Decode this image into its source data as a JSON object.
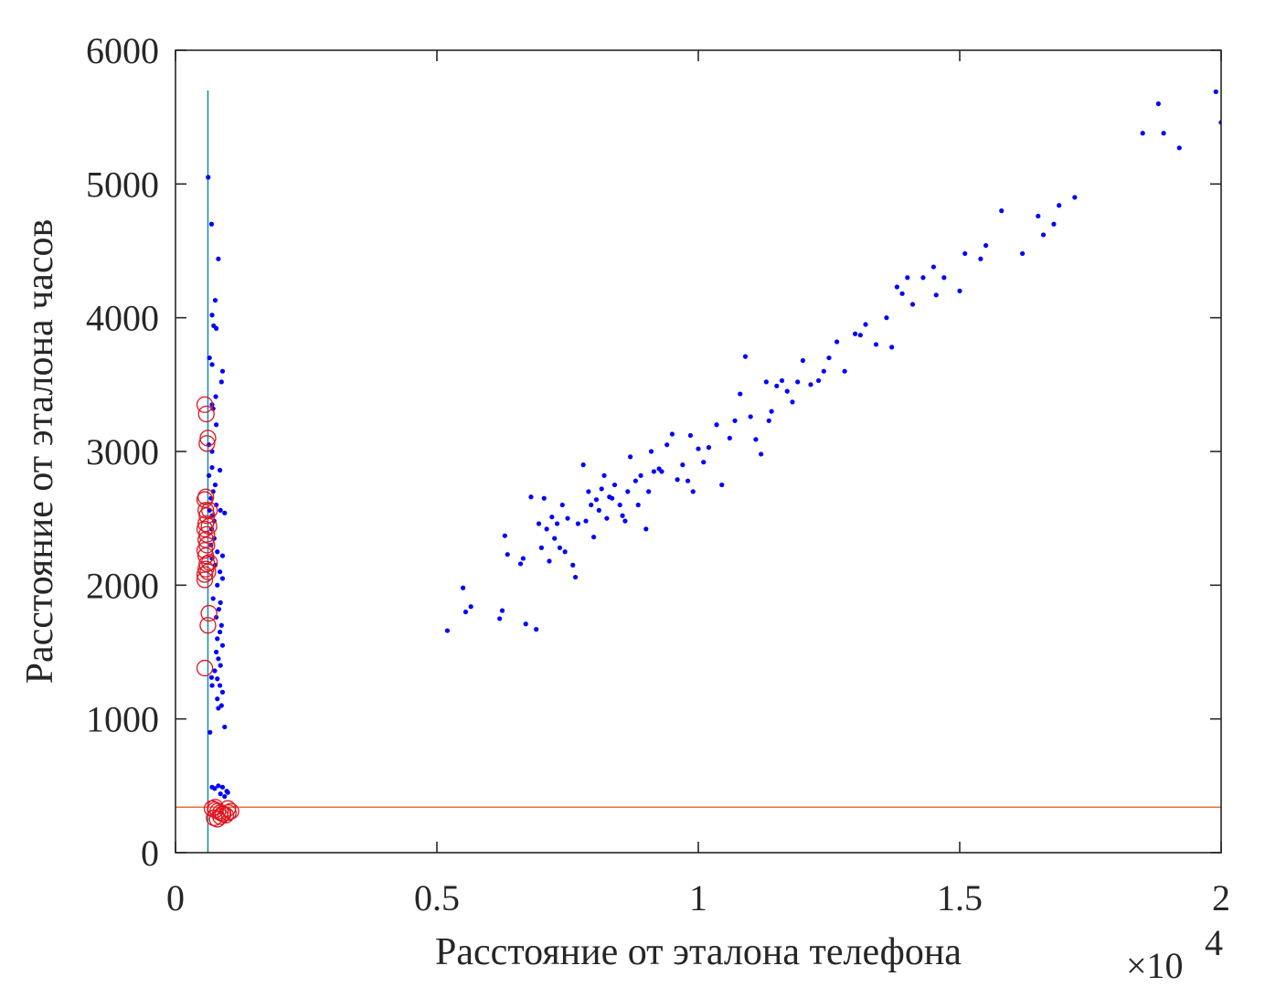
{
  "chart_data": {
    "type": "scatter",
    "title": "",
    "xlabel": "Расстояние от эталона телефона",
    "ylabel": "Расстояние от эталона часов",
    "x_exponent_label": {
      "times": "×10",
      "power": "4"
    },
    "xlim": [
      0,
      20000
    ],
    "ylim": [
      0,
      6000
    ],
    "x_ticks": [
      0,
      5000,
      10000,
      15000,
      20000
    ],
    "x_tick_labels": [
      "0",
      "0.5",
      "1",
      "1.5",
      "2"
    ],
    "y_ticks": [
      0,
      1000,
      2000,
      3000,
      4000,
      5000,
      6000
    ],
    "y_tick_labels": [
      "0",
      "1000",
      "2000",
      "3000",
      "4000",
      "5000",
      "6000"
    ],
    "grid": false,
    "colors": {
      "points": "#0000ff",
      "outliers": "#e0141e",
      "vline": "#1f8fa6",
      "hline": "#e8703a",
      "axes": "#262626"
    },
    "threshold_lines": {
      "vertical": {
        "x": 620,
        "y_from": 0,
        "y_to": 5700
      },
      "horizontal": {
        "y": 340,
        "x_from": 0,
        "x_to": 20000
      }
    },
    "series": [
      {
        "marker": "dot",
        "points": [
          [
            5200,
            1660
          ],
          [
            5500,
            1980
          ],
          [
            5550,
            1800
          ],
          [
            5650,
            1840
          ],
          [
            6200,
            1750
          ],
          [
            6250,
            1810
          ],
          [
            6300,
            2370
          ],
          [
            6350,
            2230
          ],
          [
            6600,
            2160
          ],
          [
            6650,
            2200
          ],
          [
            6700,
            1710
          ],
          [
            6800,
            2660
          ],
          [
            6900,
            1670
          ],
          [
            6950,
            2460
          ],
          [
            7000,
            2280
          ],
          [
            7050,
            2650
          ],
          [
            7100,
            2420
          ],
          [
            7150,
            2180
          ],
          [
            7200,
            2510
          ],
          [
            7250,
            2350
          ],
          [
            7300,
            2460
          ],
          [
            7350,
            2280
          ],
          [
            7400,
            2600
          ],
          [
            7450,
            2250
          ],
          [
            7500,
            2500
          ],
          [
            7600,
            2150
          ],
          [
            7650,
            2060
          ],
          [
            7700,
            2460
          ],
          [
            7800,
            2900
          ],
          [
            7850,
            2480
          ],
          [
            7900,
            2700
          ],
          [
            7950,
            2600
          ],
          [
            8000,
            2360
          ],
          [
            8050,
            2640
          ],
          [
            8100,
            2560
          ],
          [
            8150,
            2720
          ],
          [
            8200,
            2820
          ],
          [
            8250,
            2500
          ],
          [
            8300,
            2660
          ],
          [
            8350,
            2650
          ],
          [
            8400,
            2750
          ],
          [
            8500,
            2600
          ],
          [
            8550,
            2520
          ],
          [
            8600,
            2480
          ],
          [
            8650,
            2700
          ],
          [
            8700,
            2960
          ],
          [
            8800,
            2780
          ],
          [
            8850,
            2600
          ],
          [
            8900,
            2820
          ],
          [
            9000,
            2420
          ],
          [
            9050,
            2700
          ],
          [
            9100,
            3000
          ],
          [
            9150,
            2850
          ],
          [
            9250,
            2870
          ],
          [
            9300,
            2850
          ],
          [
            9400,
            3050
          ],
          [
            9500,
            3130
          ],
          [
            9600,
            2790
          ],
          [
            9700,
            2900
          ],
          [
            9800,
            2780
          ],
          [
            9850,
            3120
          ],
          [
            9900,
            2700
          ],
          [
            10000,
            3020
          ],
          [
            10100,
            2920
          ],
          [
            10200,
            3030
          ],
          [
            10350,
            3200
          ],
          [
            10450,
            2750
          ],
          [
            10600,
            3100
          ],
          [
            10700,
            3230
          ],
          [
            10800,
            3430
          ],
          [
            10900,
            3710
          ],
          [
            11000,
            3260
          ],
          [
            11100,
            3090
          ],
          [
            11200,
            2980
          ],
          [
            11300,
            3520
          ],
          [
            11350,
            3230
          ],
          [
            11400,
            3300
          ],
          [
            11500,
            3490
          ],
          [
            11600,
            3530
          ],
          [
            11700,
            3450
          ],
          [
            11800,
            3370
          ],
          [
            11900,
            3520
          ],
          [
            12000,
            3680
          ],
          [
            12150,
            3500
          ],
          [
            12300,
            3530
          ],
          [
            12400,
            3600
          ],
          [
            12500,
            3700
          ],
          [
            12650,
            3820
          ],
          [
            12800,
            3600
          ],
          [
            13000,
            3880
          ],
          [
            13100,
            3870
          ],
          [
            13200,
            3950
          ],
          [
            13400,
            3800
          ],
          [
            13600,
            4000
          ],
          [
            13700,
            3780
          ],
          [
            13800,
            4230
          ],
          [
            13900,
            4180
          ],
          [
            14000,
            4300
          ],
          [
            14100,
            4100
          ],
          [
            14300,
            4300
          ],
          [
            14500,
            4380
          ],
          [
            14550,
            4170
          ],
          [
            14700,
            4300
          ],
          [
            15000,
            4200
          ],
          [
            15100,
            4480
          ],
          [
            15400,
            4440
          ],
          [
            15500,
            4540
          ],
          [
            15800,
            4800
          ],
          [
            16200,
            4480
          ],
          [
            16500,
            4760
          ],
          [
            16600,
            4620
          ],
          [
            16800,
            4700
          ],
          [
            16900,
            4840
          ],
          [
            17200,
            4900
          ],
          [
            18500,
            5380
          ],
          [
            18800,
            5600
          ],
          [
            18900,
            5380
          ],
          [
            19200,
            5270
          ],
          [
            19900,
            5690
          ],
          [
            20000,
            5460
          ],
          [
            625,
            5050
          ],
          [
            690,
            4700
          ],
          [
            820,
            4440
          ],
          [
            760,
            4130
          ],
          [
            700,
            4020
          ],
          [
            730,
            3940
          ],
          [
            780,
            3920
          ],
          [
            650,
            3700
          ],
          [
            700,
            3650
          ],
          [
            900,
            3600
          ],
          [
            880,
            3520
          ],
          [
            770,
            3410
          ],
          [
            700,
            3350
          ],
          [
            720,
            3320
          ],
          [
            780,
            3200
          ],
          [
            640,
            3050
          ],
          [
            700,
            3000
          ],
          [
            850,
            2860
          ],
          [
            700,
            2880
          ],
          [
            640,
            2820
          ],
          [
            760,
            2750
          ],
          [
            720,
            2700
          ],
          [
            680,
            2650
          ],
          [
            780,
            2600
          ],
          [
            650,
            2560
          ],
          [
            700,
            2520
          ],
          [
            860,
            2560
          ],
          [
            940,
            2540
          ],
          [
            900,
            2220
          ],
          [
            740,
            2480
          ],
          [
            690,
            2420
          ],
          [
            740,
            2350
          ],
          [
            680,
            2300
          ],
          [
            800,
            2250
          ],
          [
            700,
            2200
          ],
          [
            760,
            2150
          ],
          [
            850,
            2100
          ],
          [
            900,
            2050
          ],
          [
            800,
            2000
          ],
          [
            720,
            1900
          ],
          [
            860,
            1870
          ],
          [
            830,
            1820
          ],
          [
            780,
            1760
          ],
          [
            880,
            1700
          ],
          [
            850,
            1650
          ],
          [
            800,
            1600
          ],
          [
            900,
            1550
          ],
          [
            780,
            1500
          ],
          [
            820,
            1450
          ],
          [
            860,
            1400
          ],
          [
            750,
            1360
          ],
          [
            800,
            1300
          ],
          [
            850,
            1250
          ],
          [
            900,
            1200
          ],
          [
            800,
            1150
          ],
          [
            880,
            1100
          ],
          [
            820,
            1080
          ],
          [
            940,
            940
          ],
          [
            690,
            1310
          ],
          [
            700,
            1250
          ],
          [
            660,
            900
          ],
          [
            700,
            490
          ],
          [
            820,
            500
          ],
          [
            900,
            490
          ],
          [
            750,
            480
          ],
          [
            980,
            460
          ],
          [
            1000,
            450
          ],
          [
            860,
            440
          ],
          [
            940,
            420
          ]
        ]
      },
      {
        "marker": "circle",
        "points": [
          [
            560,
            3350
          ],
          [
            590,
            3280
          ],
          [
            620,
            3100
          ],
          [
            600,
            3060
          ],
          [
            580,
            2660
          ],
          [
            560,
            2640
          ],
          [
            580,
            2560
          ],
          [
            600,
            2520
          ],
          [
            580,
            2460
          ],
          [
            560,
            2420
          ],
          [
            600,
            2380
          ],
          [
            580,
            2340
          ],
          [
            600,
            2300
          ],
          [
            560,
            2260
          ],
          [
            580,
            2220
          ],
          [
            600,
            2160
          ],
          [
            580,
            2120
          ],
          [
            560,
            2080
          ],
          [
            560,
            2040
          ],
          [
            650,
            2560
          ],
          [
            640,
            2440
          ],
          [
            650,
            2170
          ],
          [
            620,
            2100
          ],
          [
            640,
            1790
          ],
          [
            620,
            1700
          ],
          [
            560,
            1380
          ],
          [
            700,
            330
          ],
          [
            760,
            320
          ],
          [
            810,
            310
          ],
          [
            860,
            300
          ],
          [
            910,
            290
          ],
          [
            960,
            280
          ],
          [
            1010,
            300
          ],
          [
            1060,
            310
          ],
          [
            740,
            260
          ],
          [
            800,
            250
          ],
          [
            860,
            270
          ],
          [
            900,
            290
          ],
          [
            1000,
            330
          ],
          [
            760,
            340
          ]
        ]
      }
    ]
  }
}
